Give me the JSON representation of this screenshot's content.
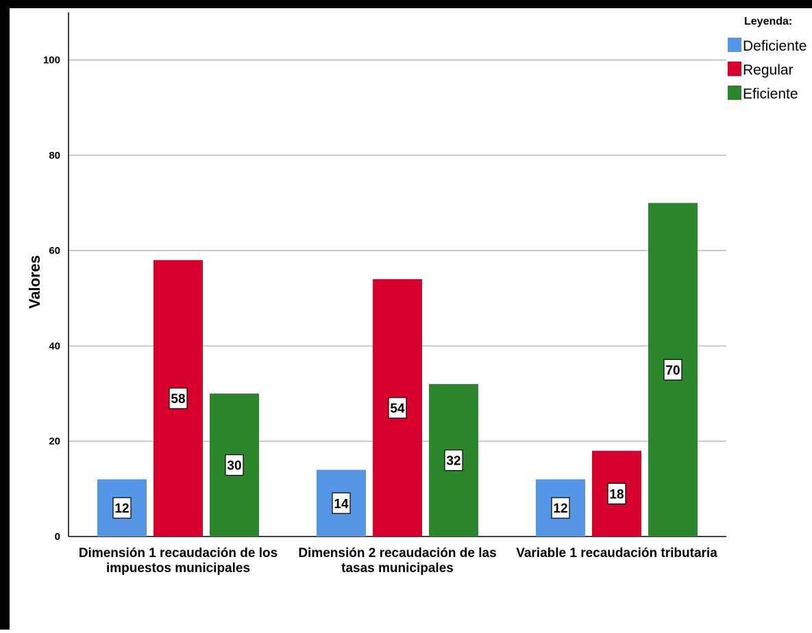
{
  "chart_data": {
    "type": "bar",
    "ylabel": "Valores",
    "xlabel": "",
    "ylim": [
      0,
      110
    ],
    "yticks": [
      0,
      20,
      40,
      60,
      80,
      100
    ],
    "grid": true,
    "legend_position": "top-right",
    "legend_title": "Leyenda:",
    "categories": [
      [
        "Dimensión 1 recaudación de los",
        "impuestos municipales"
      ],
      [
        "Dimensión 2 recaudación de las",
        "tasas municipales"
      ],
      [
        "Variable 1 recaudación tributaria"
      ]
    ],
    "series": [
      {
        "name": "Deficiente",
        "color": "#5596e6",
        "values": [
          12,
          14,
          12
        ]
      },
      {
        "name": "Regular",
        "color": "#d8002c",
        "values": [
          58,
          54,
          18
        ]
      },
      {
        "name": "Eficiente",
        "color": "#2b862b",
        "values": [
          30,
          32,
          70
        ]
      }
    ]
  }
}
